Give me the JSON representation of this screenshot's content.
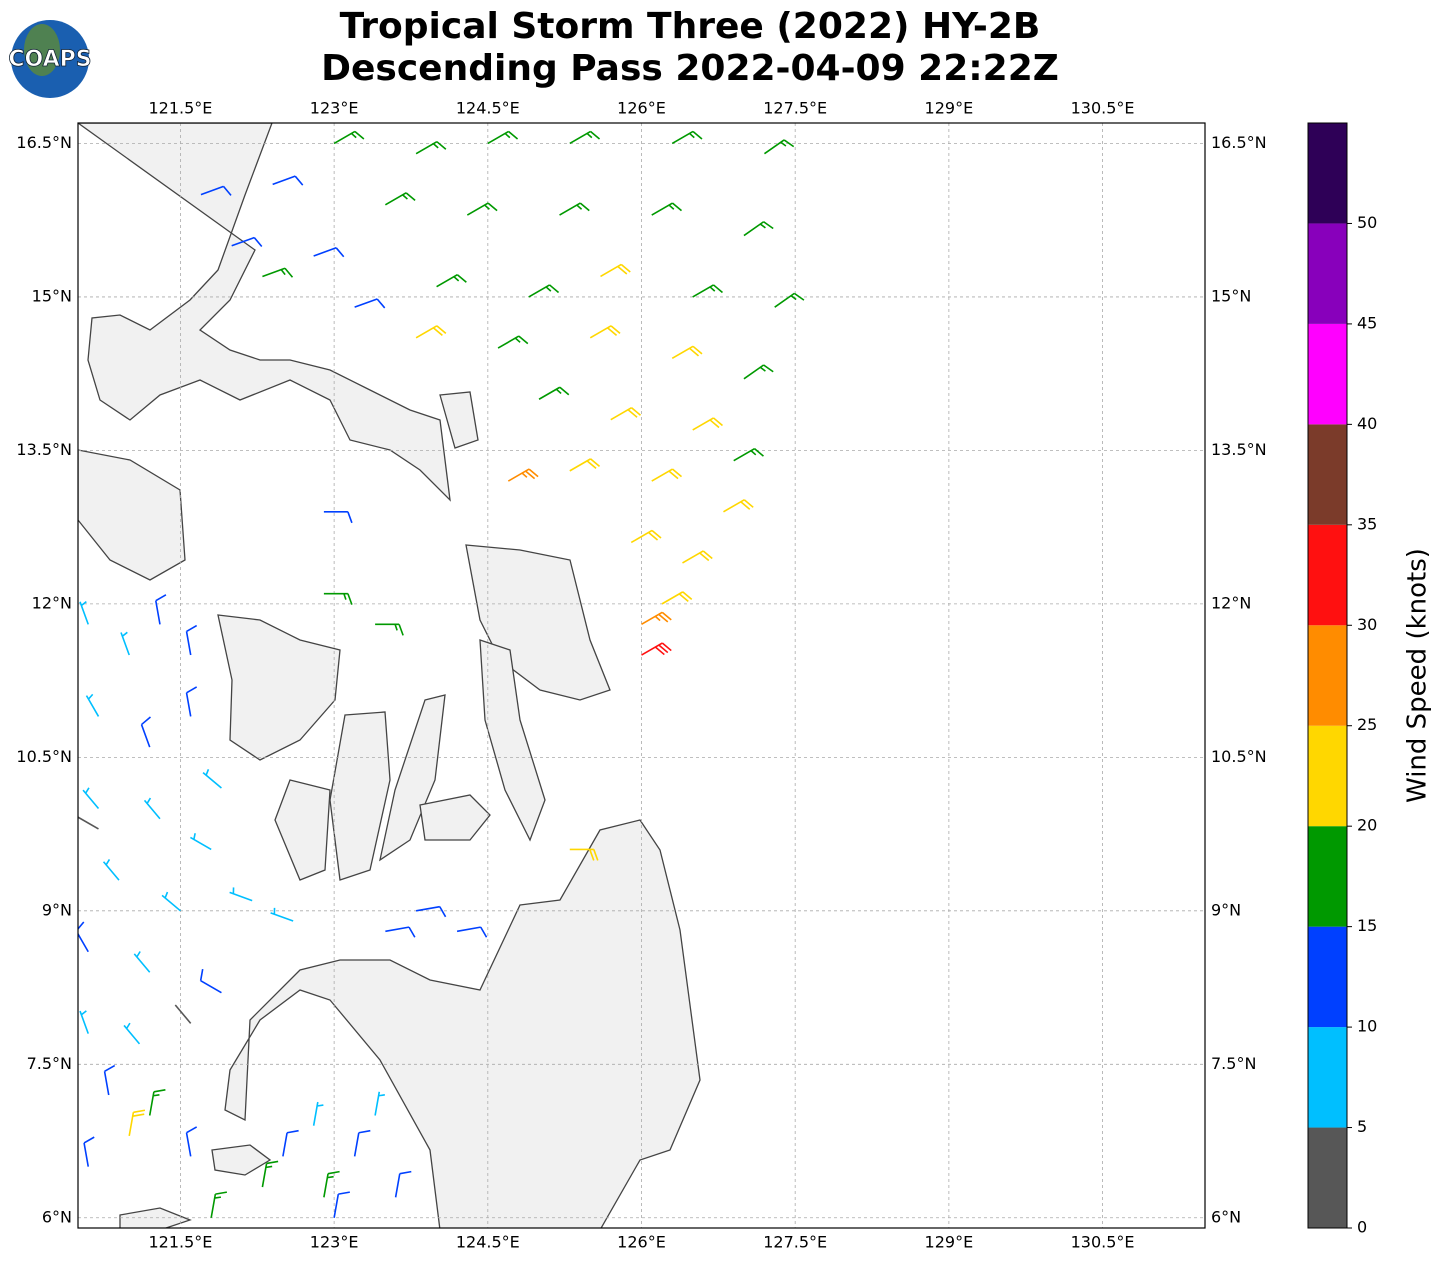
{
  "logo": "COAPS",
  "chart_data": {
    "type": "wind-barb-map",
    "title": [
      "Tropical Storm Three (2022) HY-2B",
      "Descending Pass 2022-04-09 22:22Z"
    ],
    "xlim": [
      120.5,
      131.5
    ],
    "ylim": [
      5.9,
      16.7
    ],
    "xticks": [
      {
        "value": 121.5,
        "label": "121.5°E"
      },
      {
        "value": 123,
        "label": "123°E"
      },
      {
        "value": 124.5,
        "label": "124.5°E"
      },
      {
        "value": 126,
        "label": "126°E"
      },
      {
        "value": 127.5,
        "label": "127.5°E"
      },
      {
        "value": 129,
        "label": "129°E"
      },
      {
        "value": 130.5,
        "label": "130.5°E"
      }
    ],
    "yticks": [
      {
        "value": 6,
        "label": "6°N"
      },
      {
        "value": 7.5,
        "label": "7.5°N"
      },
      {
        "value": 9,
        "label": "9°N"
      },
      {
        "value": 10.5,
        "label": "10.5°N"
      },
      {
        "value": 12,
        "label": "12°N"
      },
      {
        "value": 13.5,
        "label": "13.5°N"
      },
      {
        "value": 15,
        "label": "15°N"
      },
      {
        "value": 16.5,
        "label": "16.5°N"
      }
    ],
    "grid": true,
    "colorbar": {
      "label": "Wind Speed (knots)",
      "lim": [
        0,
        55
      ],
      "ticks": [
        0,
        5,
        10,
        15,
        20,
        25,
        30,
        35,
        40,
        45,
        50
      ],
      "colors": [
        "#575757",
        "#00bfff",
        "#0040ff",
        "#009900",
        "#ffd700",
        "#ff8c00",
        "#ff1010",
        "#7b3b2a",
        "#ff00ff",
        "#8800bb",
        "#2e0057"
      ]
    },
    "barbs": [
      {
        "lon": 123.0,
        "lat": 16.5,
        "speed": 17,
        "dir": 60
      },
      {
        "lon": 123.8,
        "lat": 16.4,
        "speed": 17,
        "dir": 60
      },
      {
        "lon": 124.5,
        "lat": 16.5,
        "speed": 17,
        "dir": 60
      },
      {
        "lon": 125.3,
        "lat": 16.5,
        "speed": 17,
        "dir": 60
      },
      {
        "lon": 126.3,
        "lat": 16.5,
        "speed": 18,
        "dir": 60
      },
      {
        "lon": 127.2,
        "lat": 16.4,
        "speed": 18,
        "dir": 55
      },
      {
        "lon": 123.5,
        "lat": 15.9,
        "speed": 17,
        "dir": 60
      },
      {
        "lon": 124.3,
        "lat": 15.8,
        "speed": 18,
        "dir": 60
      },
      {
        "lon": 125.2,
        "lat": 15.8,
        "speed": 18,
        "dir": 60
      },
      {
        "lon": 126.1,
        "lat": 15.8,
        "speed": 18,
        "dir": 60
      },
      {
        "lon": 127.0,
        "lat": 15.6,
        "speed": 18,
        "dir": 55
      },
      {
        "lon": 124.0,
        "lat": 15.1,
        "speed": 18,
        "dir": 60
      },
      {
        "lon": 124.9,
        "lat": 15.0,
        "speed": 18,
        "dir": 60
      },
      {
        "lon": 125.6,
        "lat": 15.2,
        "speed": 22,
        "dir": 60
      },
      {
        "lon": 126.5,
        "lat": 15.0,
        "speed": 19,
        "dir": 60
      },
      {
        "lon": 127.3,
        "lat": 14.9,
        "speed": 18,
        "dir": 55
      },
      {
        "lon": 123.8,
        "lat": 14.6,
        "speed": 22,
        "dir": 60
      },
      {
        "lon": 124.6,
        "lat": 14.5,
        "speed": 18,
        "dir": 60
      },
      {
        "lon": 125.5,
        "lat": 14.6,
        "speed": 22,
        "dir": 60
      },
      {
        "lon": 126.3,
        "lat": 14.4,
        "speed": 22,
        "dir": 60
      },
      {
        "lon": 127.0,
        "lat": 14.2,
        "speed": 18,
        "dir": 55
      },
      {
        "lon": 125.0,
        "lat": 14.0,
        "speed": 18,
        "dir": 60
      },
      {
        "lon": 125.7,
        "lat": 13.8,
        "speed": 22,
        "dir": 60
      },
      {
        "lon": 126.5,
        "lat": 13.7,
        "speed": 22,
        "dir": 60
      },
      {
        "lon": 126.9,
        "lat": 13.4,
        "speed": 18,
        "dir": 60
      },
      {
        "lon": 124.7,
        "lat": 13.2,
        "speed": 27,
        "dir": 60
      },
      {
        "lon": 125.3,
        "lat": 13.3,
        "speed": 22,
        "dir": 60
      },
      {
        "lon": 126.1,
        "lat": 13.2,
        "speed": 22,
        "dir": 60
      },
      {
        "lon": 126.8,
        "lat": 12.9,
        "speed": 22,
        "dir": 60
      },
      {
        "lon": 125.9,
        "lat": 12.6,
        "speed": 22,
        "dir": 60
      },
      {
        "lon": 126.4,
        "lat": 12.4,
        "speed": 22,
        "dir": 60
      },
      {
        "lon": 126.2,
        "lat": 12.0,
        "speed": 22,
        "dir": 60
      },
      {
        "lon": 126.0,
        "lat": 11.8,
        "speed": 27,
        "dir": 60
      },
      {
        "lon": 126.0,
        "lat": 11.5,
        "speed": 32,
        "dir": 60
      },
      {
        "lon": 121.7,
        "lat": 16.0,
        "speed": 12,
        "dir": 70
      },
      {
        "lon": 122.4,
        "lat": 16.1,
        "speed": 12,
        "dir": 70
      },
      {
        "lon": 122.0,
        "lat": 15.5,
        "speed": 12,
        "dir": 70
      },
      {
        "lon": 122.8,
        "lat": 15.4,
        "speed": 12,
        "dir": 70
      },
      {
        "lon": 123.2,
        "lat": 14.9,
        "speed": 12,
        "dir": 70
      },
      {
        "lon": 122.3,
        "lat": 15.2,
        "speed": 17,
        "dir": 70
      },
      {
        "lon": 122.9,
        "lat": 12.9,
        "speed": 12,
        "dir": 90
      },
      {
        "lon": 122.9,
        "lat": 12.1,
        "speed": 17,
        "dir": 90
      },
      {
        "lon": 123.4,
        "lat": 11.8,
        "speed": 17,
        "dir": 90
      },
      {
        "lon": 125.3,
        "lat": 9.6,
        "speed": 22,
        "dir": 90
      },
      {
        "lon": 123.8,
        "lat": 9.0,
        "speed": 12,
        "dir": 80
      },
      {
        "lon": 124.2,
        "lat": 8.8,
        "speed": 12,
        "dir": 80
      },
      {
        "lon": 123.5,
        "lat": 8.8,
        "speed": 12,
        "dir": 80
      },
      {
        "lon": 120.6,
        "lat": 11.8,
        "speed": 8,
        "dir": 340
      },
      {
        "lon": 121.0,
        "lat": 11.5,
        "speed": 8,
        "dir": 340
      },
      {
        "lon": 121.3,
        "lat": 11.8,
        "speed": 12,
        "dir": 350
      },
      {
        "lon": 121.6,
        "lat": 11.5,
        "speed": 12,
        "dir": 350
      },
      {
        "lon": 120.7,
        "lat": 10.9,
        "speed": 8,
        "dir": 330
      },
      {
        "lon": 121.2,
        "lat": 10.6,
        "speed": 12,
        "dir": 340
      },
      {
        "lon": 121.6,
        "lat": 10.9,
        "speed": 12,
        "dir": 350
      },
      {
        "lon": 121.9,
        "lat": 10.2,
        "speed": 8,
        "dir": 310
      },
      {
        "lon": 120.7,
        "lat": 10.0,
        "speed": 8,
        "dir": 320
      },
      {
        "lon": 121.3,
        "lat": 9.9,
        "speed": 8,
        "dir": 320
      },
      {
        "lon": 121.8,
        "lat": 9.6,
        "speed": 8,
        "dir": 300
      },
      {
        "lon": 122.2,
        "lat": 9.1,
        "speed": 8,
        "dir": 290
      },
      {
        "lon": 120.9,
        "lat": 9.3,
        "speed": 8,
        "dir": 320
      },
      {
        "lon": 121.5,
        "lat": 9.0,
        "speed": 8,
        "dir": 310
      },
      {
        "lon": 122.6,
        "lat": 8.9,
        "speed": 8,
        "dir": 290
      },
      {
        "lon": 120.6,
        "lat": 8.6,
        "speed": 12,
        "dir": 330
      },
      {
        "lon": 121.2,
        "lat": 8.4,
        "speed": 8,
        "dir": 320
      },
      {
        "lon": 121.9,
        "lat": 8.2,
        "speed": 12,
        "dir": 300
      },
      {
        "lon": 120.6,
        "lat": 7.8,
        "speed": 8,
        "dir": 340
      },
      {
        "lon": 121.1,
        "lat": 7.7,
        "speed": 8,
        "dir": 320
      },
      {
        "lon": 120.7,
        "lat": 9.8,
        "speed": 3,
        "dir": 300
      },
      {
        "lon": 121.6,
        "lat": 7.9,
        "speed": 3,
        "dir": 320
      },
      {
        "lon": 120.8,
        "lat": 7.2,
        "speed": 12,
        "dir": 350
      },
      {
        "lon": 121.2,
        "lat": 7.0,
        "speed": 17,
        "dir": 10
      },
      {
        "lon": 121.0,
        "lat": 6.8,
        "speed": 22,
        "dir": 10
      },
      {
        "lon": 121.6,
        "lat": 6.6,
        "speed": 12,
        "dir": 350
      },
      {
        "lon": 120.6,
        "lat": 6.5,
        "speed": 12,
        "dir": 350
      },
      {
        "lon": 122.8,
        "lat": 6.9,
        "speed": 8,
        "dir": 10
      },
      {
        "lon": 123.4,
        "lat": 7.0,
        "speed": 8,
        "dir": 10
      },
      {
        "lon": 122.5,
        "lat": 6.6,
        "speed": 12,
        "dir": 10
      },
      {
        "lon": 123.2,
        "lat": 6.6,
        "speed": 12,
        "dir": 10
      },
      {
        "lon": 122.3,
        "lat": 6.3,
        "speed": 17,
        "dir": 10
      },
      {
        "lon": 122.9,
        "lat": 6.2,
        "speed": 17,
        "dir": 10
      },
      {
        "lon": 123.6,
        "lat": 6.2,
        "speed": 12,
        "dir": 10
      },
      {
        "lon": 121.8,
        "lat": 6.0,
        "speed": 17,
        "dir": 10
      },
      {
        "lon": 123.0,
        "lat": 6.0,
        "speed": 12,
        "dir": 10
      }
    ]
  }
}
